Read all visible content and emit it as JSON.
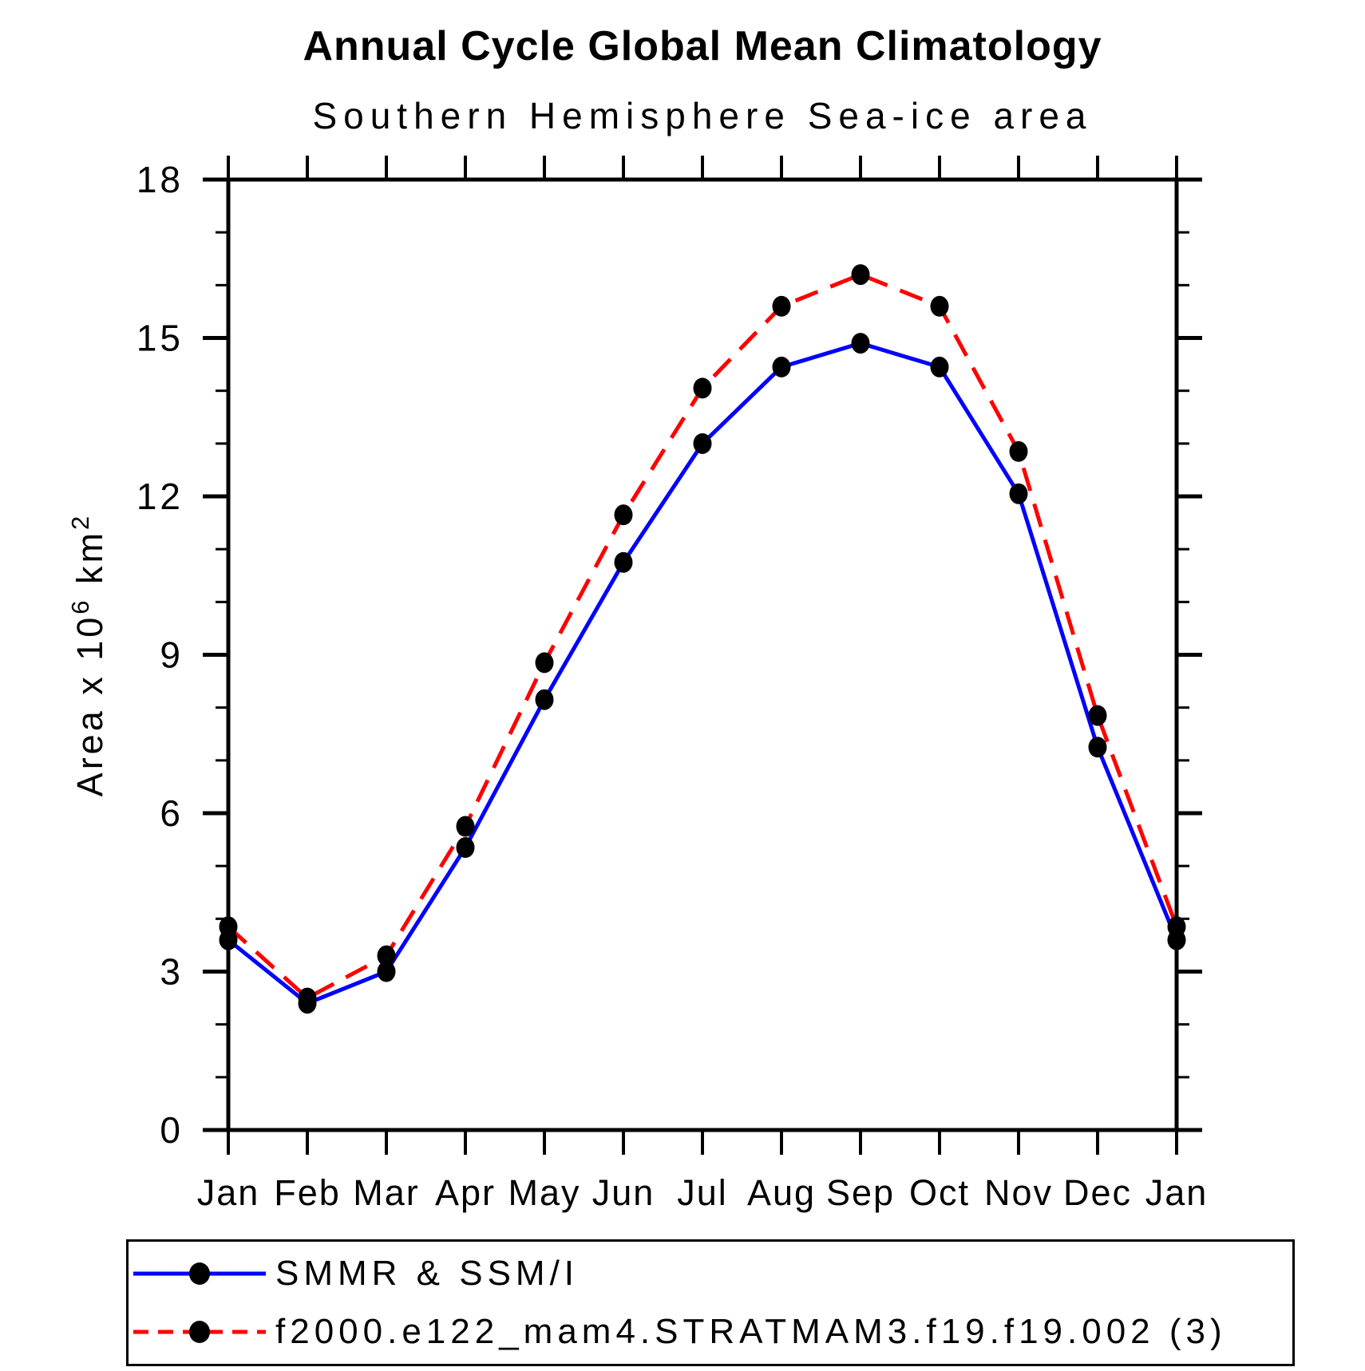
{
  "title": "Annual Cycle Global Mean Climatology",
  "subtitle": "Southern Hemisphere Sea-ice area",
  "chart_data": {
    "type": "line",
    "categories": [
      "Jan",
      "Feb",
      "Mar",
      "Apr",
      "May",
      "Jun",
      "Jul",
      "Aug",
      "Sep",
      "Oct",
      "Nov",
      "Dec",
      "Jan"
    ],
    "series": [
      {
        "name": "SMMR & SSM/I",
        "color": "#0000ff",
        "line_style": "solid",
        "marker": "black-filled-circle",
        "values": [
          3.6,
          2.4,
          3.0,
          5.35,
          8.15,
          10.75,
          13.0,
          14.45,
          14.9,
          14.45,
          12.05,
          7.25,
          3.6
        ]
      },
      {
        "name": "f2000.e122_mam4.STRATMAM3.f19.f19.002 (3)",
        "color": "#ff0000",
        "line_style": "dashed",
        "marker": "black-filled-circle",
        "values": [
          3.85,
          2.5,
          3.3,
          5.75,
          8.85,
          11.65,
          14.05,
          15.6,
          16.2,
          15.6,
          12.85,
          7.85,
          3.85
        ]
      }
    ],
    "marker_color": "#000000",
    "xlabel": "",
    "ylabel_parts": {
      "prefix": "Area x 10",
      "sup1": "6",
      "mid": " km",
      "sup2": "2"
    },
    "ylabel_text": "Area x 10^6 km^2",
    "yticks_major": [
      0,
      3,
      6,
      9,
      12,
      15,
      18
    ],
    "ytick_minor_step": 1,
    "ylim": [
      0,
      18
    ],
    "grid": false,
    "legend_position": "bottom"
  }
}
